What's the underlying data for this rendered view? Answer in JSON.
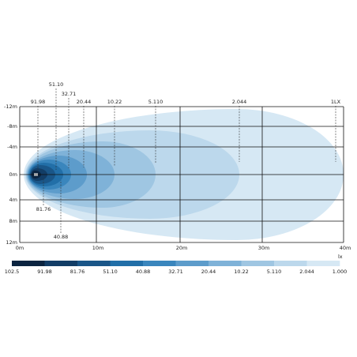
{
  "y_axis_labels": [
    "-12m",
    "-8m",
    "-4m",
    "0m",
    "4m",
    "8m",
    "12m"
  ],
  "x_axis_labels": [
    "0m",
    "10m",
    "20m",
    "30m",
    "40m"
  ],
  "contour_labels": [
    "51.10",
    "32.71",
    "91.98",
    "20.44",
    "10.22",
    "5.110",
    "2.044",
    "1LX",
    "81.76",
    "40.88"
  ],
  "legend": {
    "unit": "lx",
    "labels": [
      "102.5",
      "91.98",
      "81.76",
      "51.10",
      "40.88",
      "32.71",
      "20.44",
      "10.22",
      "5.110",
      "2.044",
      "1.000"
    ]
  }
}
